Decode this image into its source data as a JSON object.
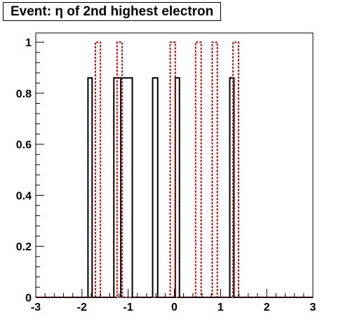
{
  "title": "Event: η of 2nd highest electron",
  "chart_data": {
    "type": "histogram",
    "title": "Event: η of 2nd highest electron",
    "xlabel": "",
    "ylabel": "",
    "xlim": [
      -3,
      3
    ],
    "ylim": [
      0,
      1.05
    ],
    "x_ticks": [
      -3,
      -2,
      -1,
      0,
      1,
      2,
      3
    ],
    "x_tick_labels": [
      "-3",
      "-2",
      "-1",
      "0",
      "1",
      "2",
      "3"
    ],
    "y_ticks": [
      0,
      0.2,
      0.4,
      0.6,
      0.8,
      1
    ],
    "y_tick_labels": [
      "0",
      "0.2",
      "0.4",
      "0.6",
      "0.8",
      "1"
    ],
    "grid": false,
    "legend": "none",
    "series": [
      {
        "style": "solid",
        "color": "#000000",
        "bins": [
          {
            "x0": -1.87,
            "x1": -1.78,
            "y": 0.86
          },
          {
            "x0": -1.31,
            "x1": -1.16,
            "y": 0.86
          },
          {
            "x0": -1.16,
            "x1": -0.91,
            "y": 0.86
          },
          {
            "x0": -0.47,
            "x1": -0.36,
            "y": 0.86
          },
          {
            "x0": 0.02,
            "x1": 0.11,
            "y": 0.86
          },
          {
            "x0": 1.2,
            "x1": 1.29,
            "y": 0.86
          }
        ]
      },
      {
        "style": "dashed",
        "color": "#cc0000",
        "bins": [
          {
            "x0": -1.71,
            "x1": -1.6,
            "y": 1
          },
          {
            "x0": -1.24,
            "x1": -1.13,
            "y": 1
          },
          {
            "x0": -0.09,
            "x1": 0.02,
            "y": 1
          },
          {
            "x0": 0.46,
            "x1": 0.58,
            "y": 1
          },
          {
            "x0": 0.82,
            "x1": 0.93,
            "y": 1
          },
          {
            "x0": 1.27,
            "x1": 1.39,
            "y": 1
          }
        ]
      }
    ]
  }
}
